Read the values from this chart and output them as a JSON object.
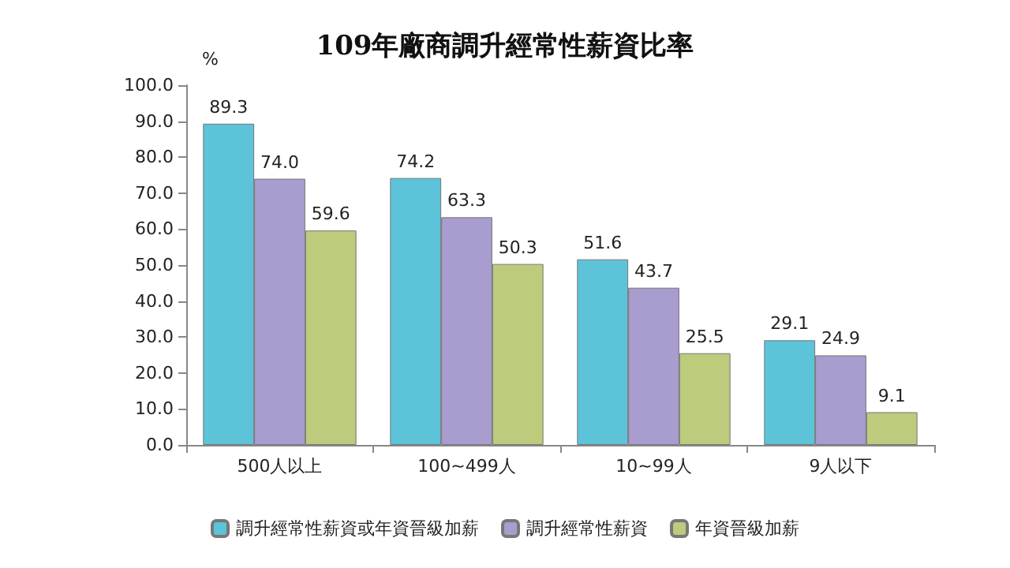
{
  "chart_data": {
    "type": "bar",
    "title": "109年廠商調升經常性薪資比率",
    "ylabel": "%",
    "categories": [
      "500人以上",
      "100~499人",
      "10~99人",
      "9人以下"
    ],
    "series": [
      {
        "name": "調升經常性薪資或年資晉級加薪",
        "color": "#5cc3d9",
        "values": [
          89.3,
          74.2,
          51.6,
          29.1
        ],
        "value_labels": [
          "89.3",
          "74.2",
          "51.6",
          "29.1"
        ]
      },
      {
        "name": "調升經常性薪資",
        "color": "#a99cce",
        "values": [
          74.0,
          63.3,
          43.7,
          24.9
        ],
        "value_labels": [
          "74.0",
          "63.3",
          "43.7",
          "24.9"
        ]
      },
      {
        "name": "年資晉級加薪",
        "color": "#bccb7c",
        "values": [
          59.6,
          50.3,
          25.5,
          9.1
        ],
        "value_labels": [
          "59.6",
          "50.3",
          "25.5",
          "9.1"
        ]
      }
    ],
    "ylim": [
      0,
      100
    ],
    "yticks": [
      {
        "value": 0,
        "label": "0.0"
      },
      {
        "value": 10,
        "label": "10.0"
      },
      {
        "value": 20,
        "label": "20.0"
      },
      {
        "value": 30,
        "label": "30.0"
      },
      {
        "value": 40,
        "label": "40.0"
      },
      {
        "value": 50,
        "label": "50.0"
      },
      {
        "value": 60,
        "label": "60.0"
      },
      {
        "value": 70,
        "label": "70.0"
      },
      {
        "value": 80,
        "label": "80.0"
      },
      {
        "value": 90,
        "label": "90.0"
      },
      {
        "value": 100,
        "label": "100.0"
      }
    ],
    "grid": false,
    "legend": "bottom"
  }
}
